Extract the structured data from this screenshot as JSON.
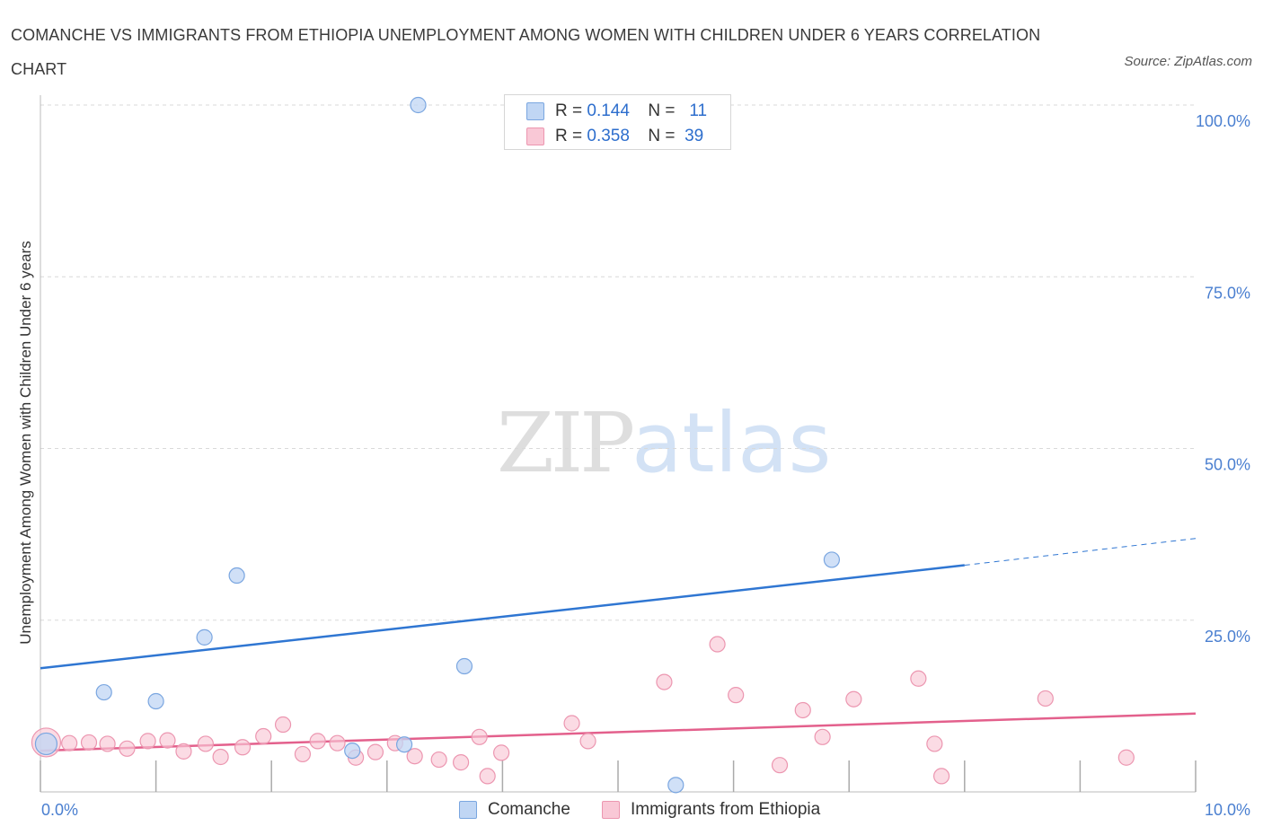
{
  "header": {
    "title": "COMANCHE VS IMMIGRANTS FROM ETHIOPIA UNEMPLOYMENT AMONG WOMEN WITH CHILDREN UNDER 6 YEARS CORRELATION CHART",
    "source": "Source: ZipAtlas.com"
  },
  "watermark": {
    "zip": "ZIP",
    "atlas": "atlas"
  },
  "colors": {
    "blue_fill": "#c0d6f4",
    "blue_stroke": "#7aa6e0",
    "blue_line": "#2f76d2",
    "pink_fill": "#f9c8d6",
    "pink_stroke": "#ec96b0",
    "pink_line": "#e3608c",
    "tick_text": "#4a7fd0",
    "grid": "#d9d9d9"
  },
  "legend_top": {
    "rows": [
      {
        "r_label": "R =",
        "r_value": "0.144",
        "n_label": "N =",
        "n_value": "11"
      },
      {
        "r_label": "R =",
        "r_value": "0.358",
        "n_label": "N =",
        "n_value": "39"
      }
    ]
  },
  "legend_bottom": {
    "series_a": "Comanche",
    "series_b": "Immigrants from Ethiopia"
  },
  "chart_data": {
    "type": "scatter",
    "title": "COMANCHE VS IMMIGRANTS FROM ETHIOPIA UNEMPLOYMENT AMONG WOMEN WITH CHILDREN UNDER 6 YEARS CORRELATION CHART",
    "xlabel": "",
    "ylabel": "Unemployment Among Women with Children Under 6 years",
    "xlim": [
      0,
      10
    ],
    "ylim": [
      0,
      100
    ],
    "x_tick_labels": [
      "0.0%",
      "10.0%"
    ],
    "y_ticks": [
      25,
      50,
      75,
      100
    ],
    "y_tick_labels": [
      "25.0%",
      "50.0%",
      "75.0%",
      "100.0%"
    ],
    "grid": true,
    "legend": "top-center",
    "series": [
      {
        "name": "Comanche",
        "R": 0.144,
        "N": 11,
        "points": [
          {
            "x": 0.05,
            "y": 7.0
          },
          {
            "x": 0.55,
            "y": 14.5
          },
          {
            "x": 1.0,
            "y": 13.2
          },
          {
            "x": 1.42,
            "y": 22.5
          },
          {
            "x": 1.7,
            "y": 31.5
          },
          {
            "x": 2.7,
            "y": 6.0
          },
          {
            "x": 3.15,
            "y": 6.9
          },
          {
            "x": 3.27,
            "y": 100.0
          },
          {
            "x": 3.67,
            "y": 18.3
          },
          {
            "x": 5.5,
            "y": 1.0
          },
          {
            "x": 6.85,
            "y": 33.8
          }
        ],
        "trend": {
          "x0": 0,
          "y0": 18.0,
          "x1": 8.0,
          "y1": 33.0,
          "dashed_to_x": 10,
          "dashed_to_y": 36.9
        }
      },
      {
        "name": "Immigrants from Ethiopia",
        "R": 0.358,
        "N": 39,
        "points": [
          {
            "x": 0.05,
            "y": 7.2
          },
          {
            "x": 0.25,
            "y": 7.1
          },
          {
            "x": 0.42,
            "y": 7.2
          },
          {
            "x": 0.58,
            "y": 7.0
          },
          {
            "x": 0.75,
            "y": 6.3
          },
          {
            "x": 0.93,
            "y": 7.4
          },
          {
            "x": 1.1,
            "y": 7.5
          },
          {
            "x": 1.24,
            "y": 5.9
          },
          {
            "x": 1.43,
            "y": 7.0
          },
          {
            "x": 1.56,
            "y": 5.1
          },
          {
            "x": 1.75,
            "y": 6.5
          },
          {
            "x": 1.93,
            "y": 8.1
          },
          {
            "x": 2.1,
            "y": 9.8
          },
          {
            "x": 2.27,
            "y": 5.5
          },
          {
            "x": 2.4,
            "y": 7.4
          },
          {
            "x": 2.57,
            "y": 7.1
          },
          {
            "x": 2.73,
            "y": 5.0
          },
          {
            "x": 2.9,
            "y": 5.8
          },
          {
            "x": 3.07,
            "y": 7.1
          },
          {
            "x": 3.24,
            "y": 5.2
          },
          {
            "x": 3.45,
            "y": 4.7
          },
          {
            "x": 3.64,
            "y": 4.3
          },
          {
            "x": 3.8,
            "y": 8.0
          },
          {
            "x": 3.87,
            "y": 2.3
          },
          {
            "x": 3.99,
            "y": 5.7
          },
          {
            "x": 4.6,
            "y": 10.0
          },
          {
            "x": 4.74,
            "y": 7.4
          },
          {
            "x": 5.4,
            "y": 16.0
          },
          {
            "x": 5.86,
            "y": 21.5
          },
          {
            "x": 6.02,
            "y": 14.1
          },
          {
            "x": 6.4,
            "y": 3.9
          },
          {
            "x": 6.6,
            "y": 11.9
          },
          {
            "x": 6.77,
            "y": 8.0
          },
          {
            "x": 7.04,
            "y": 13.5
          },
          {
            "x": 7.6,
            "y": 16.5
          },
          {
            "x": 7.74,
            "y": 7.0
          },
          {
            "x": 7.8,
            "y": 2.3
          },
          {
            "x": 8.7,
            "y": 13.6
          },
          {
            "x": 9.4,
            "y": 5.0
          }
        ],
        "trend": {
          "x0": 0,
          "y0": 6.0,
          "x1": 10,
          "y1": 11.4
        }
      }
    ]
  }
}
